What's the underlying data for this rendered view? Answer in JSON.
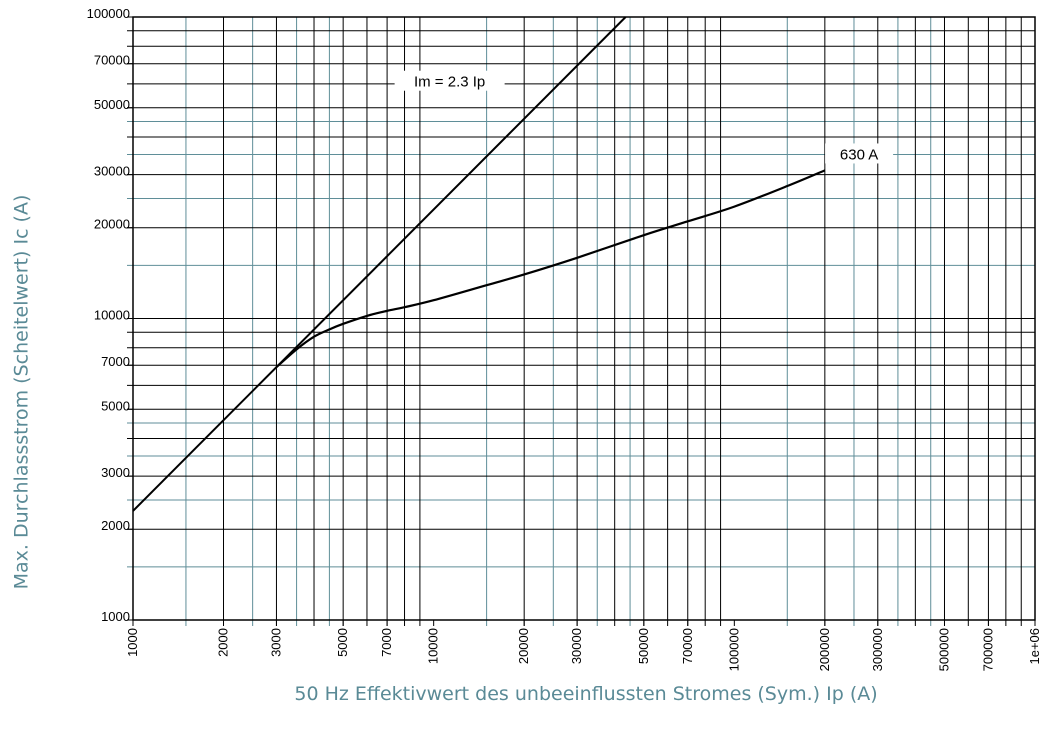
{
  "chart_data": {
    "type": "line",
    "title": "",
    "xlabel": "50 Hz Effektivwert des unbeeinflussten Stromes (Sym.) Ip (A)",
    "ylabel": "Max. Durchlassstrom (Scheitelwert) Ic (A)",
    "xscale": "log",
    "yscale": "log",
    "xlim": [
      1000,
      1000000
    ],
    "ylim": [
      1000,
      100000
    ],
    "grid": true,
    "x_tick_labels": [
      "1000",
      "2000",
      "3000",
      "5000",
      "7000",
      "10000",
      "20000",
      "30000",
      "50000",
      "70000",
      "100000",
      "200000",
      "300000",
      "500000",
      "700000",
      "1e+06"
    ],
    "x_tick_values": [
      1000,
      2000,
      3000,
      5000,
      7000,
      10000,
      20000,
      30000,
      50000,
      70000,
      100000,
      200000,
      300000,
      500000,
      700000,
      1000000
    ],
    "y_tick_labels": [
      "1000",
      "2000",
      "3000",
      "5000",
      "7000",
      "10000",
      "20000",
      "30000",
      "50000",
      "70000",
      "100000"
    ],
    "y_tick_values": [
      1000,
      2000,
      3000,
      5000,
      7000,
      10000,
      20000,
      30000,
      50000,
      70000,
      100000
    ],
    "series": [
      {
        "name": "Im = 2.3 Ip",
        "x": [
          1000,
          43500
        ],
        "y": [
          2300,
          100000
        ]
      },
      {
        "name": "630 A",
        "x": [
          3000,
          3500,
          4000,
          4500,
          5000,
          6000,
          7000,
          8000,
          10000,
          15000,
          20000,
          30000,
          50000,
          70000,
          100000,
          150000,
          200000
        ],
        "y": [
          6900,
          7900,
          8700,
          9200,
          9600,
          10200,
          10600,
          10900,
          11500,
          12900,
          14000,
          15900,
          18900,
          21000,
          23500,
          27500,
          31000
        ]
      }
    ],
    "colors": {
      "grid_major": "#000000",
      "grid_minor": "#5f8e98",
      "axis_title": "#5a8a96",
      "series": "#000000"
    }
  }
}
